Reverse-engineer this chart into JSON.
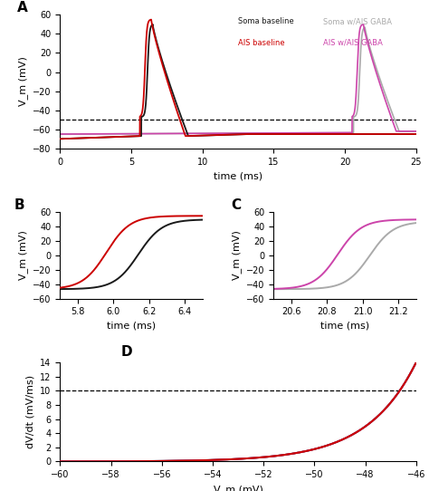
{
  "panel_A": {
    "xlim": [
      0,
      25
    ],
    "ylim": [
      -80,
      60
    ],
    "xlabel": "time (ms)",
    "ylabel": "V_m (mV)",
    "yticks": [
      -80,
      -60,
      -40,
      -20,
      0,
      20,
      40,
      60
    ],
    "xticks": [
      0,
      5,
      10,
      15,
      20,
      25
    ],
    "dashed_y": -50,
    "legend": [
      {
        "label": "Soma baseline",
        "color": "#1a1a1a"
      },
      {
        "label": "AIS baseline",
        "color": "#cc0000"
      },
      {
        "label": "Soma w/AIS GABA",
        "color": "#aaaaaa"
      },
      {
        "label": "AIS w/AIS GABA",
        "color": "#cc44aa"
      }
    ]
  },
  "panel_B": {
    "xlim": [
      5.7,
      6.5
    ],
    "ylim": [
      -60,
      60
    ],
    "xlabel": "time (ms)",
    "ylabel": "V_m (mV)",
    "yticks": [
      -60,
      -40,
      -20,
      0,
      20,
      40,
      60
    ],
    "xticks": [
      5.8,
      6.0,
      6.2,
      6.4
    ]
  },
  "panel_C": {
    "xlim": [
      20.5,
      21.3
    ],
    "ylim": [
      -60,
      60
    ],
    "xlabel": "time (ms)",
    "ylabel": "V_m (mV)",
    "yticks": [
      -60,
      -40,
      -20,
      0,
      20,
      40,
      60
    ],
    "xticks": [
      20.6,
      20.8,
      21.0,
      21.2
    ]
  },
  "panel_D": {
    "xlim": [
      -60,
      -46
    ],
    "ylim": [
      0,
      14
    ],
    "xlabel": "V_m (mV)",
    "ylabel": "dV/dt (mV/ms)",
    "yticks": [
      0,
      2,
      4,
      6,
      8,
      10,
      12,
      14
    ],
    "xticks": [
      -60,
      -58,
      -56,
      -54,
      -52,
      -50,
      -48,
      -46
    ],
    "dashed_y": 10
  },
  "colors": {
    "soma_baseline": "#1a1a1a",
    "ais_baseline": "#cc0000",
    "soma_gaba": "#aaaaaa",
    "ais_gaba": "#cc44aa"
  }
}
